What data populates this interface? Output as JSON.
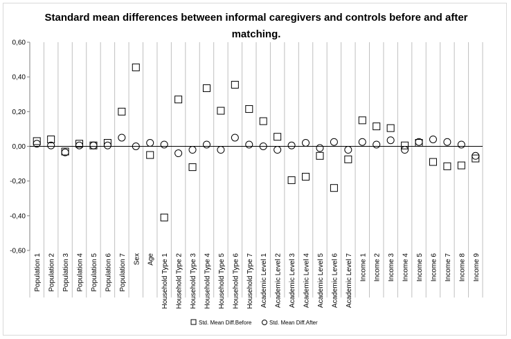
{
  "chart_data": {
    "type": "scatter",
    "title": "Standard mean differences between informal caregivers and controls before and after matching.",
    "xlabel": "",
    "ylabel": "",
    "ylim": [
      -0.6,
      0.6
    ],
    "yticks": [
      0.6,
      0.4,
      0.2,
      0.0,
      -0.2,
      -0.4,
      -0.6
    ],
    "ytick_labels": [
      "0,60",
      "0,40",
      "0,20",
      "0,00",
      "-0,20",
      "-0,40",
      "-0,60"
    ],
    "grid": "vertical category lines",
    "legend_position": "bottom",
    "categories": [
      "Population 1",
      "Population 2",
      "Population 3",
      "Population 4",
      "Population 5",
      "Population 6",
      "Population 7",
      "Sex",
      "Age",
      "Household Type 1",
      "Household Type 2",
      "Household Type 3",
      "Household Type 4",
      "Household Type 5",
      "Household Type 6",
      "Household Type 7",
      "Academic Level 1",
      "Academic Level 2",
      "Academic Level 3",
      "Academic Level 4",
      "Academic Level 5",
      "Academic Level 6",
      "Academic Level 7",
      "Income 1",
      "Income 2",
      "Income 3",
      "Income 4",
      "Income 5",
      "Income 6",
      "Income 7",
      "Income 8",
      "Income 9"
    ],
    "series": [
      {
        "name": "Std. Mean Diff.Before",
        "marker": "square",
        "values": [
          0.03,
          0.04,
          -0.03,
          0.015,
          0.005,
          0.02,
          0.2,
          0.455,
          -0.05,
          -0.41,
          0.27,
          -0.12,
          0.335,
          0.205,
          0.355,
          0.215,
          0.145,
          0.055,
          -0.195,
          -0.175,
          -0.055,
          -0.24,
          -0.075,
          0.15,
          0.115,
          0.105,
          0.005,
          0.02,
          -0.09,
          -0.115,
          -0.11,
          -0.07
        ]
      },
      {
        "name": "Std. Mean Diff.After",
        "marker": "circle",
        "values": [
          0.015,
          0.005,
          -0.035,
          0.005,
          0.005,
          0.005,
          0.05,
          0.0,
          0.02,
          0.01,
          -0.04,
          -0.02,
          0.01,
          -0.02,
          0.05,
          0.01,
          0.0,
          -0.02,
          0.005,
          0.02,
          -0.01,
          0.025,
          -0.02,
          0.025,
          0.01,
          0.035,
          -0.02,
          0.025,
          0.04,
          0.025,
          0.01,
          -0.055
        ]
      }
    ]
  }
}
